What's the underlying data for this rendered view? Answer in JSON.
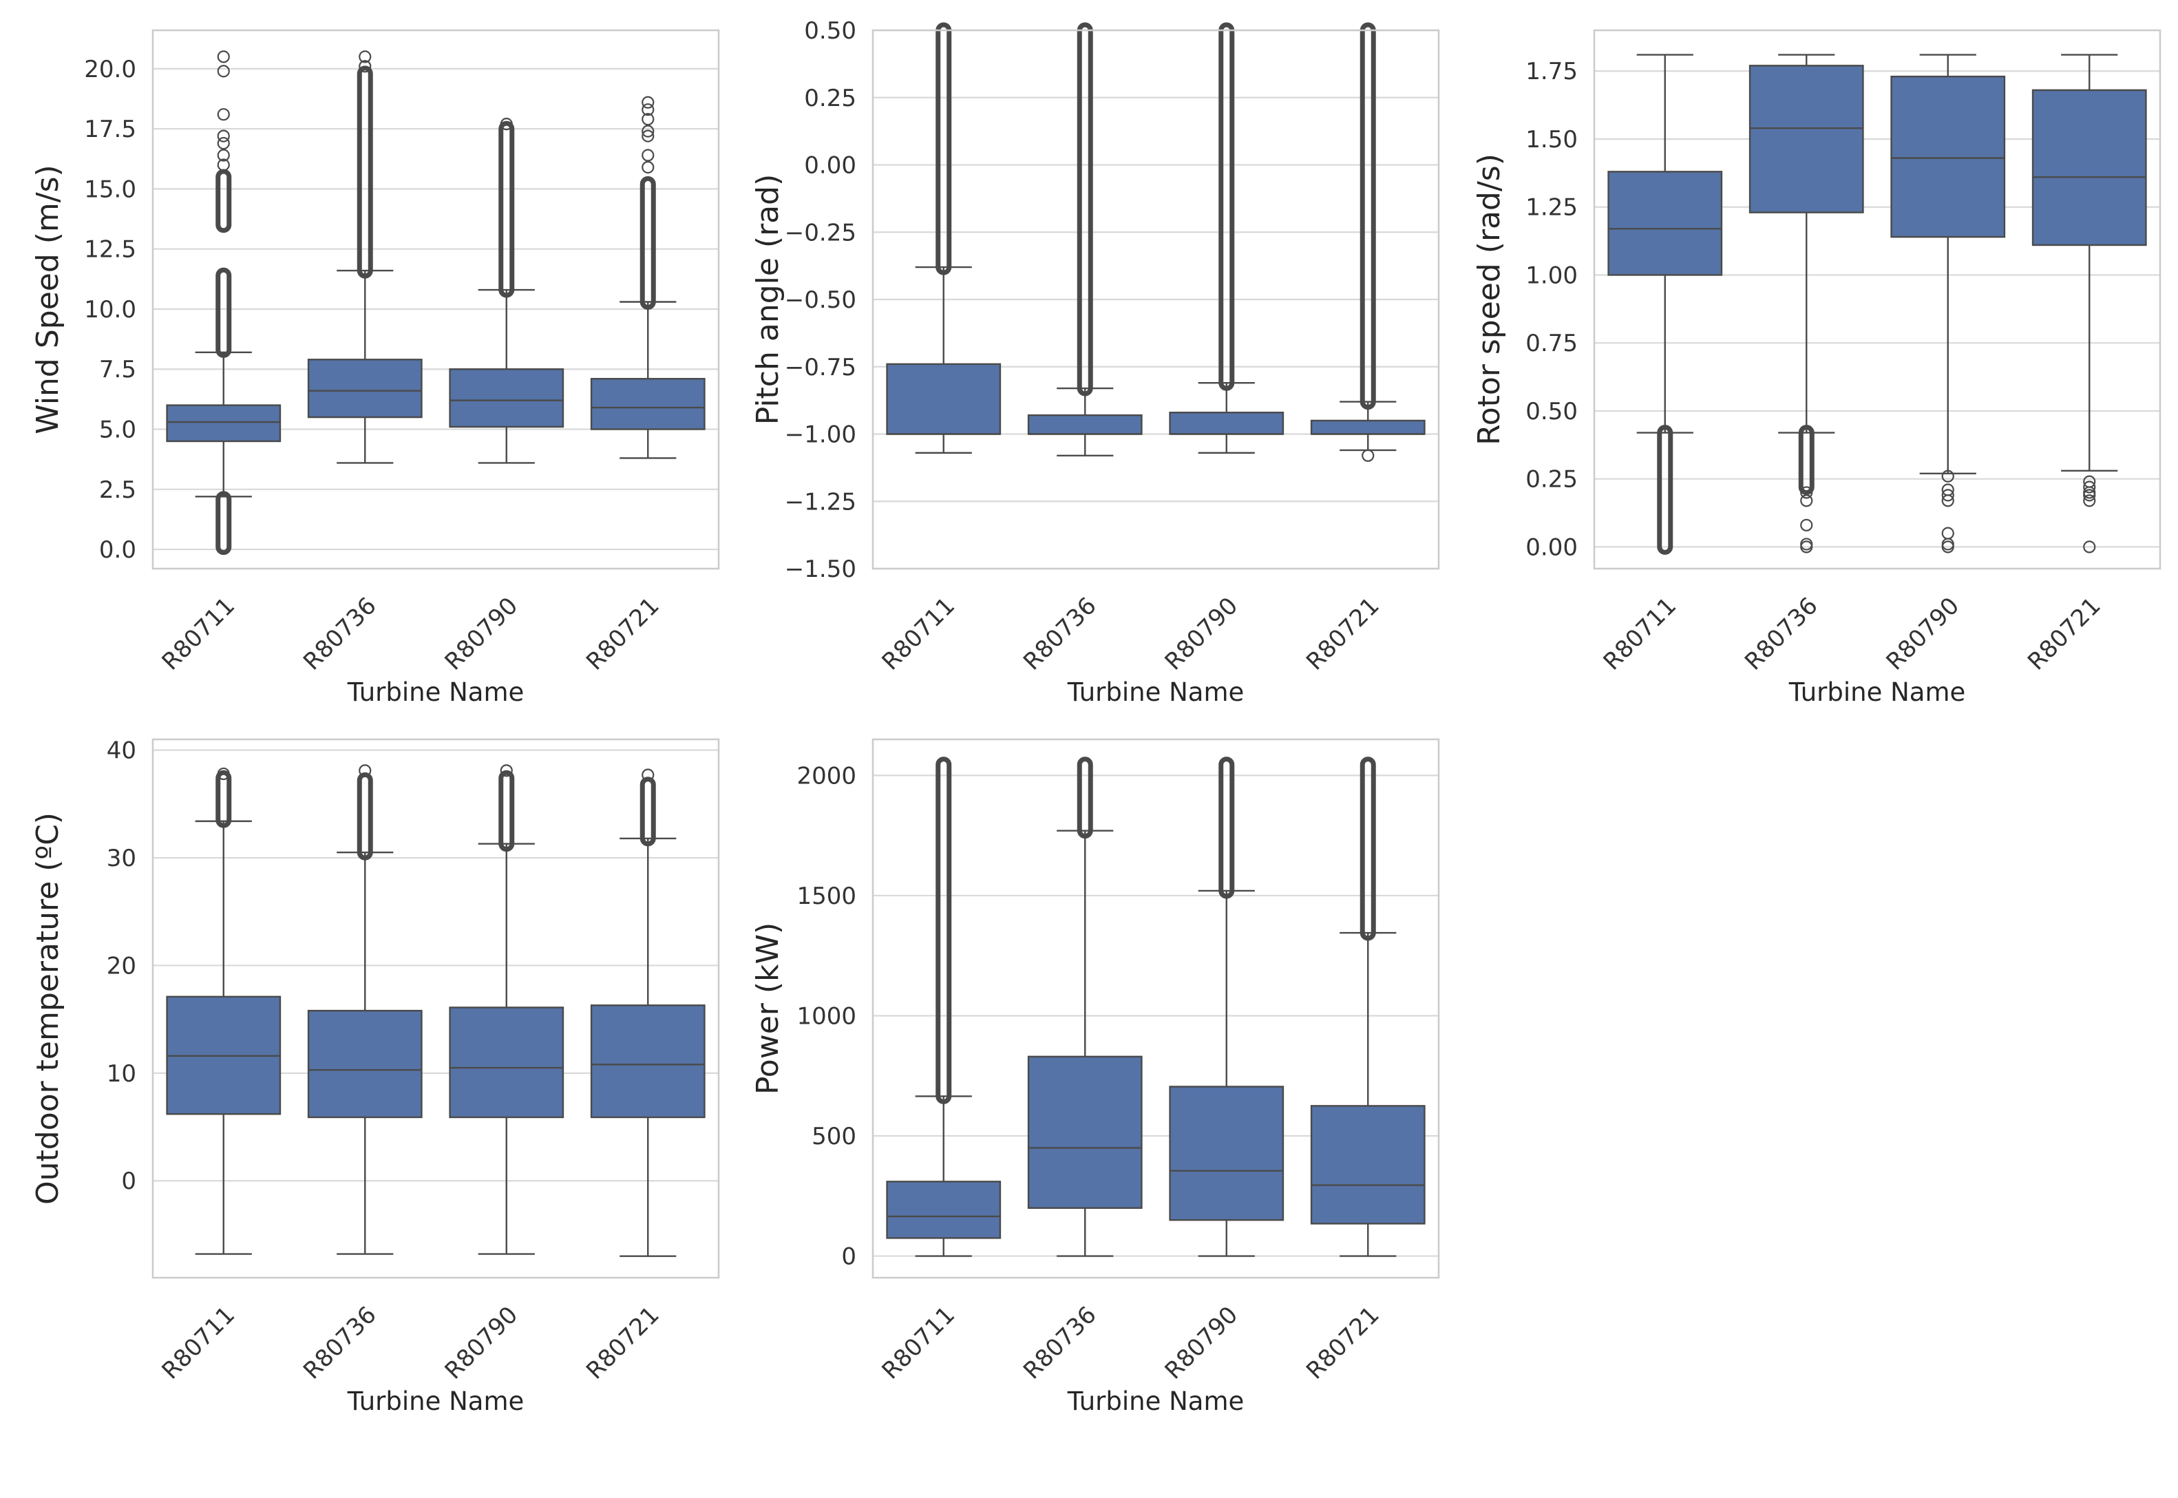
{
  "figure": {
    "colors": {
      "box_fill": "#5573a6",
      "line": "#4a4a4a",
      "grid": "#d9d9d9",
      "frame": "#cccccc",
      "flier": "#4a4a4a"
    }
  },
  "chart_data": [
    {
      "type": "box",
      "xlabel": "Turbine Name",
      "ylabel": "Wind Speed (m/s)",
      "ylim": [
        -0.8,
        21.6
      ],
      "yticks": [
        0.0,
        2.5,
        5.0,
        7.5,
        10.0,
        12.5,
        15.0,
        17.5,
        20.0
      ],
      "ytick_labels": [
        "0.0",
        "2.5",
        "5.0",
        "7.5",
        "10.0",
        "12.5",
        "15.0",
        "17.5",
        "20.0"
      ],
      "grid": true,
      "categories": [
        "R80711",
        "R80736",
        "R80790",
        "R80721"
      ],
      "boxes": [
        {
          "whislo": 2.2,
          "q1": 4.5,
          "med": 5.3,
          "q3": 6.0,
          "whishi": 8.2,
          "fliers_bands": [
            [
              0.1,
              2.1
            ],
            [
              8.3,
              11.4
            ],
            [
              13.5,
              15.5
            ]
          ],
          "fliers_points": [
            16.0,
            16.4,
            16.9,
            17.2,
            18.1,
            19.9,
            20.5
          ]
        },
        {
          "whislo": 3.6,
          "q1": 5.5,
          "med": 6.6,
          "q3": 7.9,
          "whishi": 11.6,
          "fliers_bands": [
            [
              11.6,
              19.8
            ]
          ],
          "fliers_points": [
            20.1,
            20.5
          ]
        },
        {
          "whislo": 3.6,
          "q1": 5.1,
          "med": 6.2,
          "q3": 7.5,
          "whishi": 10.8,
          "fliers_bands": [
            [
              10.8,
              17.5
            ]
          ],
          "fliers_points": [
            17.7
          ]
        },
        {
          "whislo": 3.8,
          "q1": 5.0,
          "med": 5.9,
          "q3": 7.1,
          "whishi": 10.3,
          "fliers_bands": [
            [
              10.3,
              15.2
            ]
          ],
          "fliers_points": [
            15.9,
            16.4,
            17.2,
            17.4,
            17.9,
            18.3,
            18.6
          ]
        }
      ]
    },
    {
      "type": "box",
      "xlabel": "Turbine Name",
      "ylabel": "Pitch angle (rad)",
      "ylim": [
        -1.5,
        0.5
      ],
      "yticks": [
        -1.5,
        -1.25,
        -1.0,
        -0.75,
        -0.5,
        -0.25,
        0.0,
        0.25,
        0.5
      ],
      "ytick_labels": [
        "−1.50",
        "−1.25",
        "−1.00",
        "−0.75",
        "−0.50",
        "−0.25",
        "0.00",
        "0.25",
        "0.50"
      ],
      "grid": true,
      "categories": [
        "R80711",
        "R80736",
        "R80790",
        "R80721"
      ],
      "boxes": [
        {
          "whislo": -1.07,
          "q1": -1.0,
          "med": -1.0,
          "q3": -0.74,
          "whishi": -0.38,
          "fliers_bands": [
            [
              -0.38,
              0.5
            ]
          ],
          "fliers_points": []
        },
        {
          "whislo": -1.08,
          "q1": -1.0,
          "med": -1.0,
          "q3": -0.93,
          "whishi": -0.83,
          "fliers_bands": [
            [
              -0.83,
              0.5
            ]
          ],
          "fliers_points": []
        },
        {
          "whislo": -1.07,
          "q1": -1.0,
          "med": -1.0,
          "q3": -0.92,
          "whishi": -0.81,
          "fliers_bands": [
            [
              -0.81,
              0.5
            ]
          ],
          "fliers_points": []
        },
        {
          "whislo": -1.06,
          "q1": -1.0,
          "med": -1.0,
          "q3": -0.95,
          "whishi": -0.88,
          "fliers_bands": [
            [
              -0.88,
              0.5
            ]
          ],
          "fliers_points": [
            -1.08
          ]
        }
      ]
    },
    {
      "type": "box",
      "xlabel": "Turbine Name",
      "ylabel": "Rotor speed (rad/s)",
      "ylim": [
        -0.08,
        1.9
      ],
      "yticks": [
        0.0,
        0.25,
        0.5,
        0.75,
        1.0,
        1.25,
        1.5,
        1.75
      ],
      "ytick_labels": [
        "0.00",
        "0.25",
        "0.50",
        "0.75",
        "1.00",
        "1.25",
        "1.50",
        "1.75"
      ],
      "grid": true,
      "categories": [
        "R80711",
        "R80736",
        "R80790",
        "R80721"
      ],
      "boxes": [
        {
          "whislo": 0.42,
          "q1": 1.0,
          "med": 1.17,
          "q3": 1.38,
          "whishi": 1.81,
          "fliers_bands": [
            [
              0.0,
              0.42
            ]
          ],
          "fliers_points": []
        },
        {
          "whislo": 0.42,
          "q1": 1.23,
          "med": 1.54,
          "q3": 1.77,
          "whishi": 1.81,
          "fliers_bands": [
            [
              0.22,
              0.42
            ]
          ],
          "fliers_points": [
            0.17,
            0.2,
            0.08,
            0.0,
            0.01
          ]
        },
        {
          "whislo": 0.27,
          "q1": 1.14,
          "med": 1.43,
          "q3": 1.73,
          "whishi": 1.81,
          "fliers_bands": [],
          "fliers_points": [
            0.26,
            0.21,
            0.19,
            0.17,
            0.05,
            0.01,
            0.0
          ]
        },
        {
          "whislo": 0.28,
          "q1": 1.11,
          "med": 1.36,
          "q3": 1.68,
          "whishi": 1.81,
          "fliers_bands": [],
          "fliers_points": [
            0.24,
            0.22,
            0.2,
            0.19,
            0.17,
            0.0
          ]
        }
      ]
    },
    {
      "type": "box",
      "xlabel": "Turbine Name",
      "ylabel": "Outdoor temperature (ºC)",
      "ylim": [
        -9,
        41
      ],
      "yticks": [
        0,
        10,
        20,
        30,
        40
      ],
      "ytick_labels": [
        "0",
        "10",
        "20",
        "30",
        "40"
      ],
      "grid": true,
      "categories": [
        "R80711",
        "R80736",
        "R80790",
        "R80721"
      ],
      "boxes": [
        {
          "whislo": -6.8,
          "q1": 6.2,
          "med": 11.6,
          "q3": 17.1,
          "whishi": 33.4,
          "fliers_bands": [
            [
              33.5,
              37.4
            ]
          ],
          "fliers_points": [
            37.8
          ]
        },
        {
          "whislo": -6.8,
          "q1": 5.9,
          "med": 10.3,
          "q3": 15.8,
          "whishi": 30.5,
          "fliers_bands": [
            [
              30.5,
              37.2
            ]
          ],
          "fliers_points": [
            38.1
          ]
        },
        {
          "whislo": -6.8,
          "q1": 5.9,
          "med": 10.5,
          "q3": 16.1,
          "whishi": 31.3,
          "fliers_bands": [
            [
              31.3,
              37.4
            ]
          ],
          "fliers_points": [
            38.1
          ]
        },
        {
          "whislo": -7.0,
          "q1": 5.9,
          "med": 10.8,
          "q3": 16.3,
          "whishi": 31.8,
          "fliers_bands": [
            [
              31.8,
              36.8
            ]
          ],
          "fliers_points": [
            37.7
          ]
        }
      ]
    },
    {
      "type": "box",
      "xlabel": "Turbine Name",
      "ylabel": "Power (kW)",
      "ylim": [
        -90,
        2150
      ],
      "yticks": [
        0,
        500,
        1000,
        1500,
        2000
      ],
      "ytick_labels": [
        "0",
        "500",
        "1000",
        "1500",
        "2000"
      ],
      "grid": true,
      "categories": [
        "R80711",
        "R80736",
        "R80790",
        "R80721"
      ],
      "boxes": [
        {
          "whislo": 0,
          "q1": 75,
          "med": 165,
          "q3": 310,
          "whishi": 665,
          "fliers_bands": [
            [
              665,
              2045
            ]
          ],
          "fliers_points": []
        },
        {
          "whislo": 0,
          "q1": 200,
          "med": 450,
          "q3": 830,
          "whishi": 1770,
          "fliers_bands": [
            [
              1770,
              2045
            ]
          ],
          "fliers_points": []
        },
        {
          "whislo": 0,
          "q1": 150,
          "med": 355,
          "q3": 705,
          "whishi": 1520,
          "fliers_bands": [
            [
              1520,
              2045
            ]
          ],
          "fliers_points": []
        },
        {
          "whislo": 0,
          "q1": 135,
          "med": 295,
          "q3": 625,
          "whishi": 1345,
          "fliers_bands": [
            [
              1345,
              2045
            ]
          ],
          "fliers_points": []
        }
      ]
    }
  ]
}
